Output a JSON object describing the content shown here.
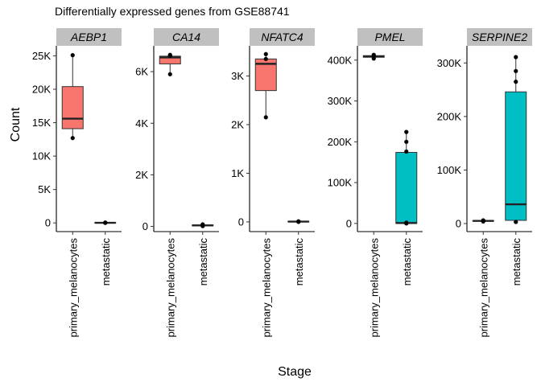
{
  "chart_data": {
    "type": "box",
    "title": "Differentially expressed genes from GSE88741",
    "xlabel": "Stage",
    "ylabel": "Count",
    "categories": [
      "primary_melanocytes",
      "metastatic"
    ],
    "colors": {
      "primary_melanocytes": "#F8766D",
      "metastatic": "#00BFC4",
      "strip": "#c0c0c0"
    },
    "grid": false,
    "legend": "none",
    "panels": [
      {
        "gene": "AEBP1",
        "ylim": [
          -1300,
          26500
        ],
        "ticks": [
          0,
          5000,
          10000,
          15000,
          20000,
          25000
        ],
        "tick_labels": [
          "0",
          "5K",
          "10K",
          "15K",
          "20K",
          "25K"
        ],
        "boxes": [
          {
            "category": "primary_melanocytes",
            "min": 12700,
            "q1": 14100,
            "median": 15600,
            "q3": 20400,
            "max": 25100,
            "points": [
              12700,
              25100
            ]
          },
          {
            "category": "metastatic",
            "min": 0,
            "q1": 0,
            "median": 20,
            "q3": 60,
            "max": 120,
            "points": [
              0,
              30,
              60
            ]
          }
        ]
      },
      {
        "gene": "CA14",
        "ylim": [
          -200,
          7000
        ],
        "ticks": [
          0,
          2000,
          4000,
          6000
        ],
        "tick_labels": [
          "0",
          "2K",
          "4K",
          "6K"
        ],
        "boxes": [
          {
            "category": "primary_melanocytes",
            "min": 5900,
            "q1": 6300,
            "median": 6550,
            "q3": 6600,
            "max": 6650,
            "points": [
              5900,
              6620,
              6650
            ]
          },
          {
            "category": "metastatic",
            "min": 10,
            "q1": 20,
            "median": 40,
            "q3": 60,
            "max": 90,
            "points": [
              15,
              40,
              80
            ]
          }
        ]
      },
      {
        "gene": "NFATC4",
        "ylim": [
          -200,
          3620
        ],
        "ticks": [
          0,
          1000,
          2000,
          3000
        ],
        "tick_labels": [
          "0",
          "1K",
          "2K",
          "3K"
        ],
        "boxes": [
          {
            "category": "primary_melanocytes",
            "min": 2150,
            "q1": 2700,
            "median": 3250,
            "q3": 3350,
            "max": 3450,
            "points": [
              2150,
              3350,
              3450
            ]
          },
          {
            "category": "metastatic",
            "min": 0,
            "q1": 0,
            "median": 5,
            "q3": 10,
            "max": 15,
            "points": [
              0,
              5,
              12
            ]
          }
        ]
      },
      {
        "gene": "PMEL",
        "ylim": [
          -20000,
          435000
        ],
        "ticks": [
          0,
          100000,
          200000,
          300000,
          400000
        ],
        "tick_labels": [
          "0",
          "100K",
          "200K",
          "300K",
          "400K"
        ],
        "boxes": [
          {
            "category": "primary_melanocytes",
            "min": 404000,
            "q1": 407000,
            "median": 409000,
            "q3": 411000,
            "max": 413000,
            "points": [
              404000,
              410000,
              413000
            ]
          },
          {
            "category": "metastatic",
            "min": 0,
            "q1": 0,
            "median": 1000,
            "q3": 174000,
            "max": 224000,
            "points": [
              0,
              2000,
              176000,
              200000,
              224000
            ]
          }
        ]
      },
      {
        "gene": "SERPINE2",
        "ylim": [
          -15000,
          332000
        ],
        "ticks": [
          0,
          100000,
          200000,
          300000
        ],
        "tick_labels": [
          "0",
          "100K",
          "200K",
          "300K"
        ],
        "boxes": [
          {
            "category": "primary_melanocytes",
            "min": 4000,
            "q1": 4500,
            "median": 5000,
            "q3": 5500,
            "max": 6000,
            "points": [
              4000,
              5000,
              6000
            ]
          },
          {
            "category": "metastatic",
            "min": 3000,
            "q1": 6000,
            "median": 36000,
            "q3": 246000,
            "max": 311000,
            "points": [
              3000,
              265000,
              285000,
              311000
            ]
          }
        ]
      }
    ]
  }
}
